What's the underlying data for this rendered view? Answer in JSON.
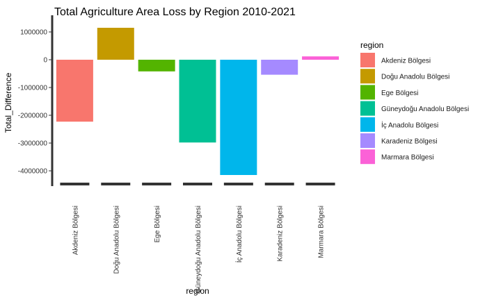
{
  "chart_data": {
    "type": "bar",
    "title": "Total Agriculture Area Loss by Region 2010-2021",
    "xlabel": "region",
    "ylabel": "Total_Difference",
    "categories": [
      "Akdeniz Bölgesi",
      "Doğu Anadolu Bölgesi",
      "Ege Bölgesi",
      "Güneydoğu Anadolu Bölgesi",
      "İç Anadolu Bölgesi",
      "Karadeniz Bölgesi",
      "Marmara Bölgesi"
    ],
    "values": [
      -2230000,
      1150000,
      -420000,
      -2980000,
      -4150000,
      -540000,
      120000
    ],
    "colors": [
      "#F8766D",
      "#C49A00",
      "#53B400",
      "#00C094",
      "#00B6EB",
      "#A58AFF",
      "#FB61D7"
    ],
    "ylim": [
      -4500000,
      1250000
    ],
    "yticks": [
      1000000,
      0,
      -1000000,
      -2000000,
      -3000000,
      -4000000
    ],
    "ytick_labels": [
      "1000000",
      "0",
      "-1000000",
      "-2000000",
      "-3000000",
      "-4000000"
    ],
    "grid": false,
    "legend": {
      "title": "region",
      "placement": "right",
      "entries": [
        "Akdeniz Bölgesi",
        "Doğu Anadolu Bölgesi",
        "Ege Bölgesi",
        "Güneydoğu Anadolu Bölgesi",
        "İç Anadolu Bölgesi",
        "Karadeniz Bölgesi",
        "Marmara Bölgesi"
      ]
    }
  }
}
